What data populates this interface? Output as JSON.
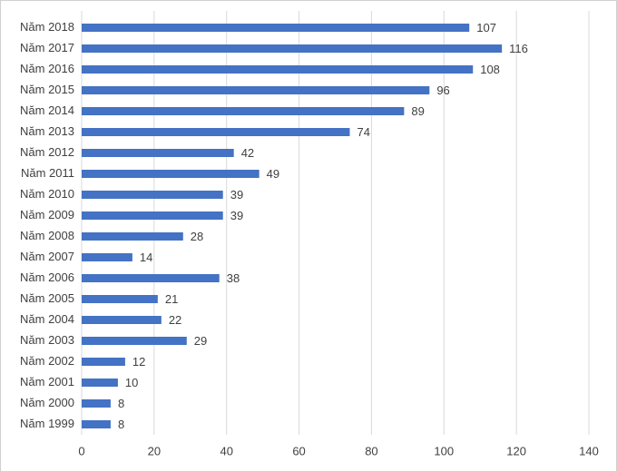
{
  "chart_data": {
    "type": "bar",
    "orientation": "horizontal",
    "categories": [
      "Năm 2018",
      "Năm 2017",
      "Năm 2016",
      "Năm 2015",
      "Năm 2014",
      "Năm 2013",
      "Năm 2012",
      "Năm 2011",
      "Năm 2010",
      "Năm 2009",
      "Năm 2008",
      "Năm 2007",
      "Năm 2006",
      "Năm 2005",
      "Năm 2004",
      "Năm 2003",
      "Năm 2002",
      "Năm 2001",
      "Năm 2000",
      "Năm 1999"
    ],
    "values": [
      107,
      116,
      108,
      96,
      89,
      74,
      42,
      49,
      39,
      39,
      28,
      14,
      38,
      21,
      22,
      29,
      12,
      10,
      8,
      8
    ],
    "color": "#4472c4",
    "xlim": [
      0,
      140
    ],
    "xticks": [
      0,
      20,
      40,
      60,
      80,
      100,
      120,
      140
    ],
    "grid": true
  }
}
